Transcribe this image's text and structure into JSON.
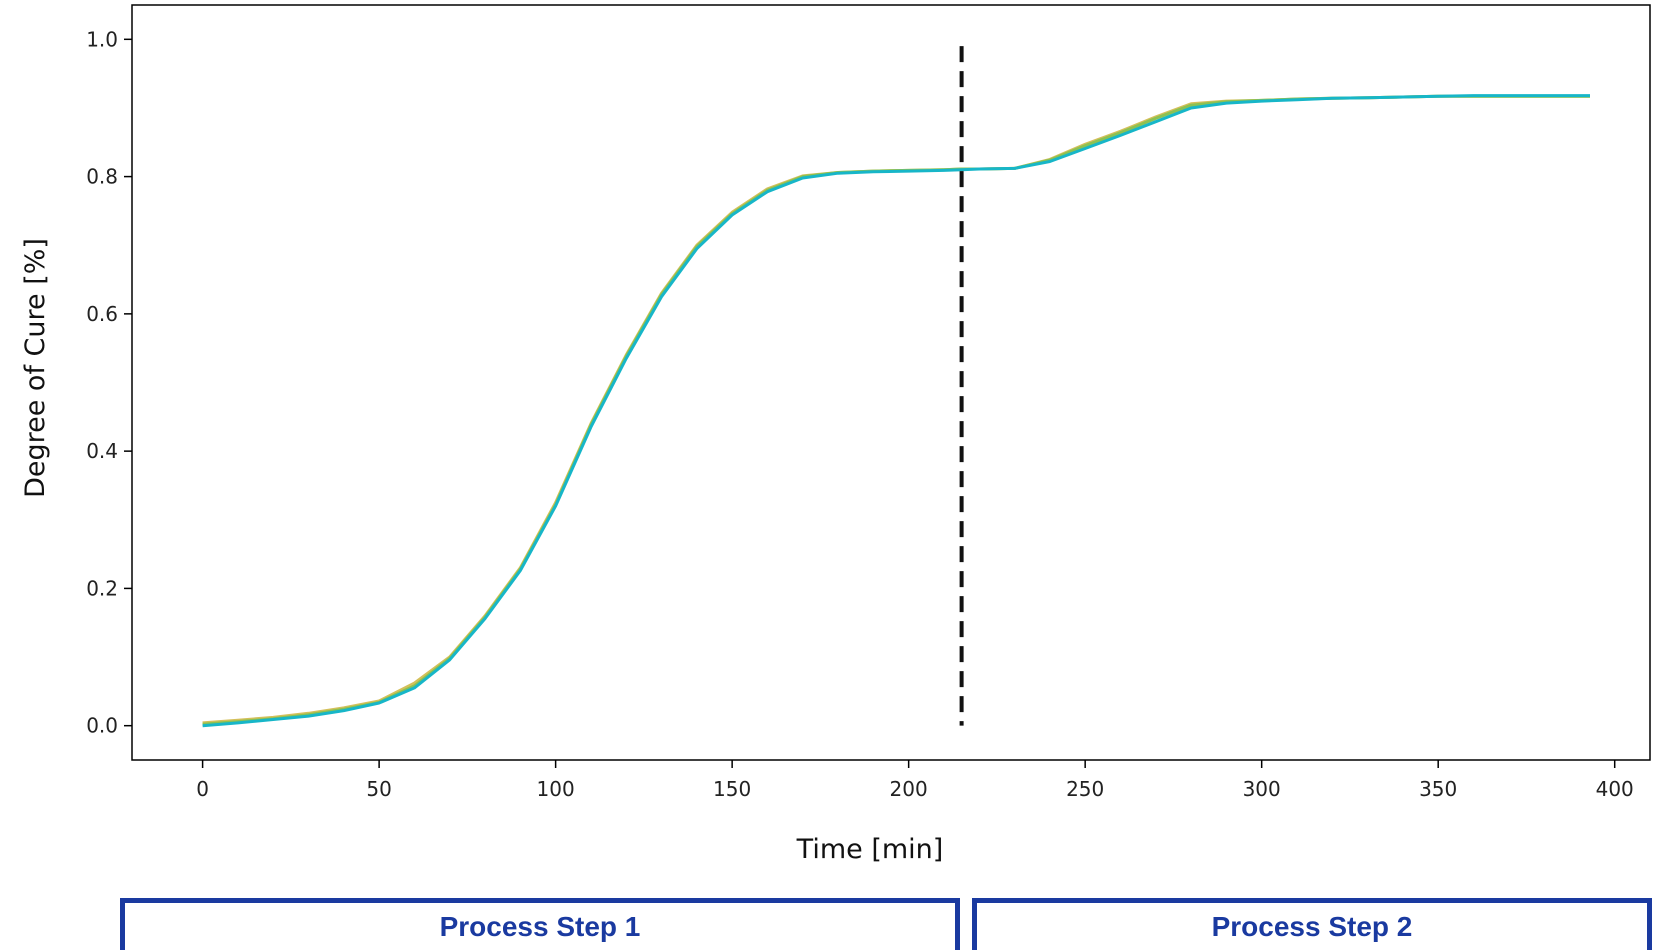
{
  "chart_data": {
    "type": "line",
    "title": "",
    "xlabel": "Time [min]",
    "ylabel": "Degree of Cure [%]",
    "xlim": [
      -20,
      410
    ],
    "ylim": [
      -0.05,
      1.05
    ],
    "xticks": [
      0,
      50,
      100,
      150,
      200,
      250,
      300,
      350,
      400
    ],
    "yticks": [
      0.0,
      0.2,
      0.4,
      0.6,
      0.8,
      1.0
    ],
    "grid": false,
    "legend": "none",
    "divider": {
      "x": 215,
      "y_start": 0.0,
      "y_end": 0.99,
      "style": "dashed",
      "color": "#111111"
    },
    "series": [
      {
        "color": "#d4c05a",
        "x": [
          0,
          10,
          20,
          30,
          40,
          50,
          60,
          70,
          80,
          90,
          100,
          110,
          120,
          130,
          140,
          150,
          160,
          170,
          180,
          190,
          200,
          210,
          215,
          220,
          230,
          240,
          250,
          260,
          270,
          280,
          290,
          300,
          310,
          320,
          330,
          340,
          350,
          360,
          370,
          380,
          393
        ],
        "y": [
          0.004,
          0.008,
          0.012,
          0.018,
          0.026,
          0.036,
          0.062,
          0.1,
          0.16,
          0.23,
          0.325,
          0.44,
          0.54,
          0.63,
          0.7,
          0.748,
          0.782,
          0.801,
          0.806,
          0.808,
          0.809,
          0.81,
          0.811,
          0.811,
          0.812,
          0.825,
          0.847,
          0.866,
          0.887,
          0.906,
          0.91,
          0.911,
          0.913,
          0.914,
          0.915,
          0.916,
          0.917,
          0.917,
          0.917,
          0.917,
          0.917
        ]
      },
      {
        "color": "#8cc152",
        "x": [
          0,
          10,
          20,
          30,
          40,
          50,
          60,
          70,
          80,
          90,
          100,
          110,
          120,
          130,
          140,
          150,
          160,
          170,
          180,
          190,
          200,
          210,
          215,
          220,
          230,
          240,
          250,
          260,
          270,
          280,
          290,
          300,
          310,
          320,
          330,
          340,
          350,
          360,
          370,
          380,
          393
        ],
        "y": [
          0.002,
          0.006,
          0.01,
          0.016,
          0.024,
          0.034,
          0.058,
          0.098,
          0.158,
          0.228,
          0.322,
          0.438,
          0.538,
          0.628,
          0.698,
          0.746,
          0.78,
          0.8,
          0.806,
          0.808,
          0.809,
          0.81,
          0.811,
          0.811,
          0.812,
          0.824,
          0.845,
          0.864,
          0.885,
          0.904,
          0.909,
          0.911,
          0.913,
          0.914,
          0.915,
          0.916,
          0.917,
          0.917,
          0.917,
          0.917,
          0.917
        ]
      },
      {
        "color": "#17b6c8",
        "x": [
          0,
          10,
          20,
          30,
          40,
          50,
          60,
          70,
          80,
          90,
          100,
          110,
          120,
          130,
          140,
          150,
          160,
          170,
          180,
          190,
          200,
          210,
          215,
          220,
          230,
          240,
          250,
          260,
          270,
          280,
          290,
          300,
          310,
          320,
          330,
          340,
          350,
          360,
          370,
          380,
          393
        ],
        "y": [
          0.0,
          0.004,
          0.009,
          0.014,
          0.022,
          0.033,
          0.055,
          0.096,
          0.156,
          0.226,
          0.32,
          0.435,
          0.535,
          0.625,
          0.695,
          0.744,
          0.778,
          0.798,
          0.805,
          0.807,
          0.808,
          0.809,
          0.81,
          0.811,
          0.812,
          0.822,
          0.841,
          0.86,
          0.88,
          0.9,
          0.907,
          0.91,
          0.912,
          0.914,
          0.915,
          0.916,
          0.917,
          0.918,
          0.918,
          0.918,
          0.918
        ]
      }
    ]
  },
  "steps": {
    "step1_label": "Process Step 1",
    "step2_label": "Process Step 2"
  }
}
